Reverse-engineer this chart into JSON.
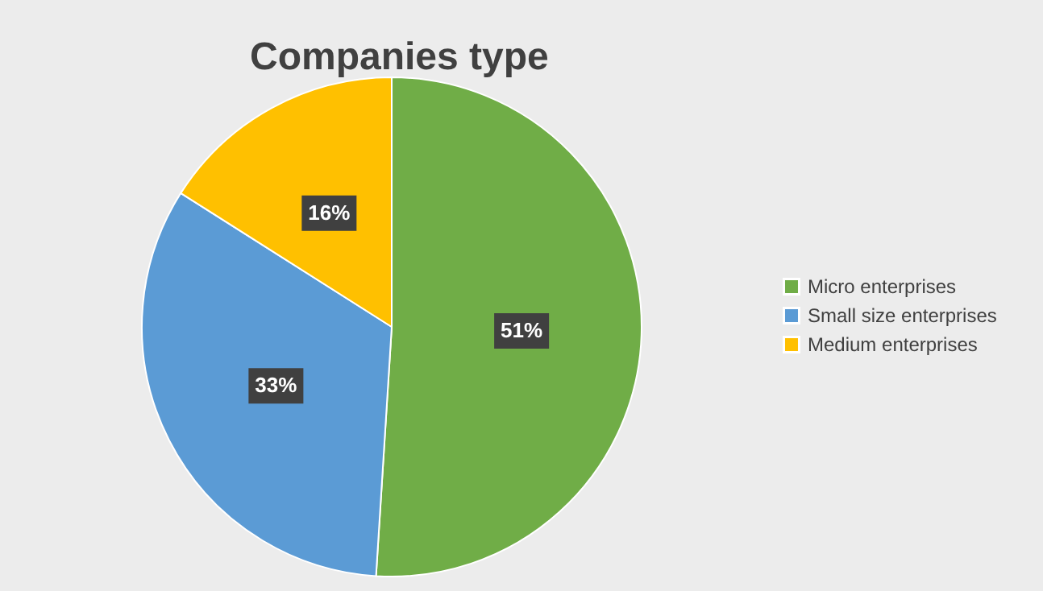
{
  "chart_data": {
    "type": "pie",
    "title": "Companies type",
    "categories": [
      "Micro enterprises",
      "Small size enterprises",
      "Medium enterprises"
    ],
    "values": [
      51,
      33,
      16
    ],
    "colors": [
      "#70ad47",
      "#5b9bd5",
      "#ffc000"
    ],
    "value_labels": [
      "51%",
      "33%",
      "16%"
    ],
    "legend": "right"
  }
}
